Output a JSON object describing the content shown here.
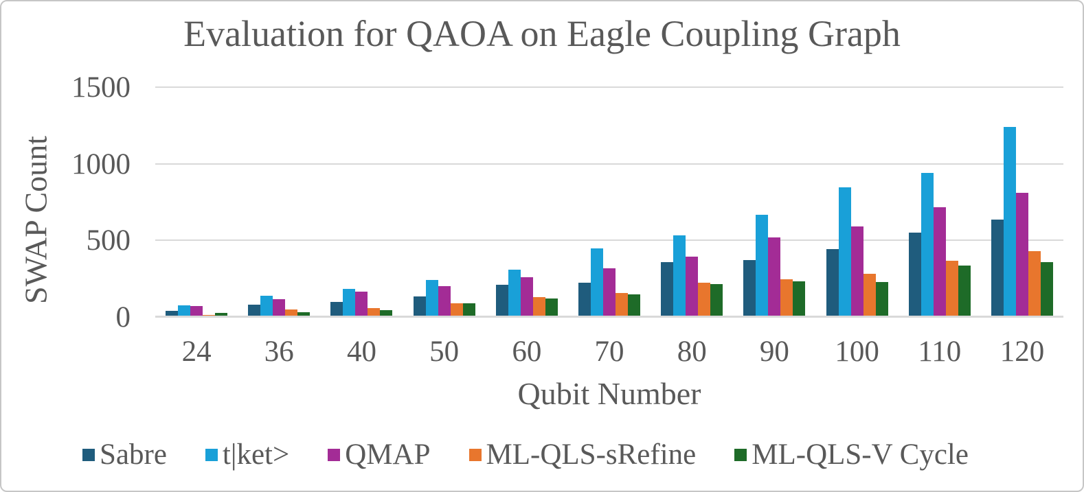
{
  "title": "Evaluation for QAOA on Eagle Coupling Graph",
  "y_axis": {
    "label": "SWAP Count"
  },
  "x_axis": {
    "label": "Qubit Number"
  },
  "chart_data": {
    "type": "bar",
    "title": "Evaluation for QAOA on Eagle Coupling Graph",
    "xlabel": "Qubit Number",
    "ylabel": "SWAP Count",
    "ylim": [
      0,
      1500
    ],
    "y_ticks": [
      1500,
      1000,
      500,
      0
    ],
    "grid": true,
    "legend_position": "bottom",
    "categories": [
      "24",
      "36",
      "40",
      "50",
      "60",
      "70",
      "80",
      "90",
      "100",
      "110",
      "120"
    ],
    "series": [
      {
        "name": "Sabre",
        "color": "#1F5C7D",
        "values": [
          40,
          80,
          100,
          135,
          210,
          225,
          360,
          370,
          445,
          550,
          635
        ]
      },
      {
        "name": "t|ket>",
        "color": "#19A0D8",
        "values": [
          75,
          140,
          185,
          242,
          310,
          450,
          535,
          665,
          845,
          940,
          1240
        ]
      },
      {
        "name": "QMAP",
        "color": "#A32C96",
        "values": [
          70,
          115,
          165,
          202,
          260,
          320,
          395,
          520,
          590,
          715,
          810
        ]
      },
      {
        "name": "ML-QLS-sRefine",
        "color": "#E8762D",
        "values": [
          15,
          50,
          58,
          89,
          128,
          155,
          225,
          245,
          280,
          365,
          430
        ]
      },
      {
        "name": "ML-QLS-V Cycle",
        "color": "#1E6B28",
        "values": [
          25,
          32,
          44,
          91,
          120,
          150,
          215,
          235,
          230,
          335,
          360
        ]
      }
    ]
  }
}
